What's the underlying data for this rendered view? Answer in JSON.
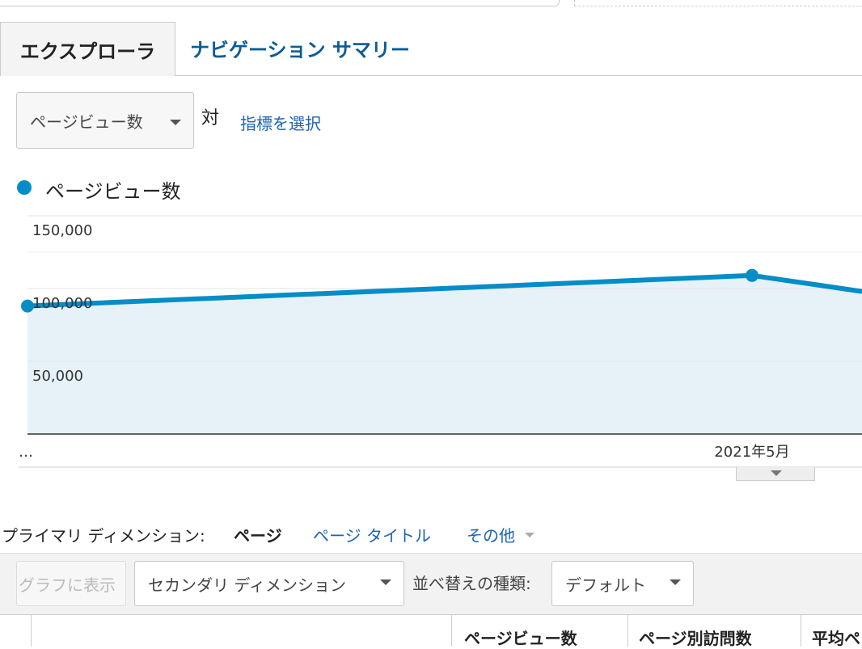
{
  "tabs": [
    "エクスプローラ",
    "ナビゲーション サマリー"
  ],
  "metric_bar": {
    "metric": "ページビュー数",
    "versus": "対",
    "select_metric": "指標を選択"
  },
  "chart_data": {
    "type": "line",
    "categories": [
      "…",
      "2021年5月",
      null
    ],
    "series": [
      {
        "name": "ページビュー数",
        "color": "#058dc7",
        "values": [
          88000,
          109000,
          98000
        ]
      }
    ],
    "ylim": [
      0,
      150000
    ],
    "yticks": [
      {
        "value": 50000,
        "label": "50,000"
      },
      {
        "value": 100000,
        "label": "100,000"
      },
      {
        "value": 150000,
        "label": "150,000"
      }
    ],
    "grid": true,
    "area": true
  },
  "dimension": {
    "label": "プライマリ ディメンション:",
    "active": "ページ",
    "options": [
      "ページ タイトル",
      "その他"
    ]
  },
  "toolbar": {
    "plot": "グラフに表示",
    "secondary": "セカンダリ ディメンション",
    "sort_label": "並べ替えの種類:",
    "sort_value": "デフォルト"
  },
  "table": {
    "headers": [
      "ページビュー数",
      "ページ別訪問数",
      "平均ペ"
    ]
  }
}
